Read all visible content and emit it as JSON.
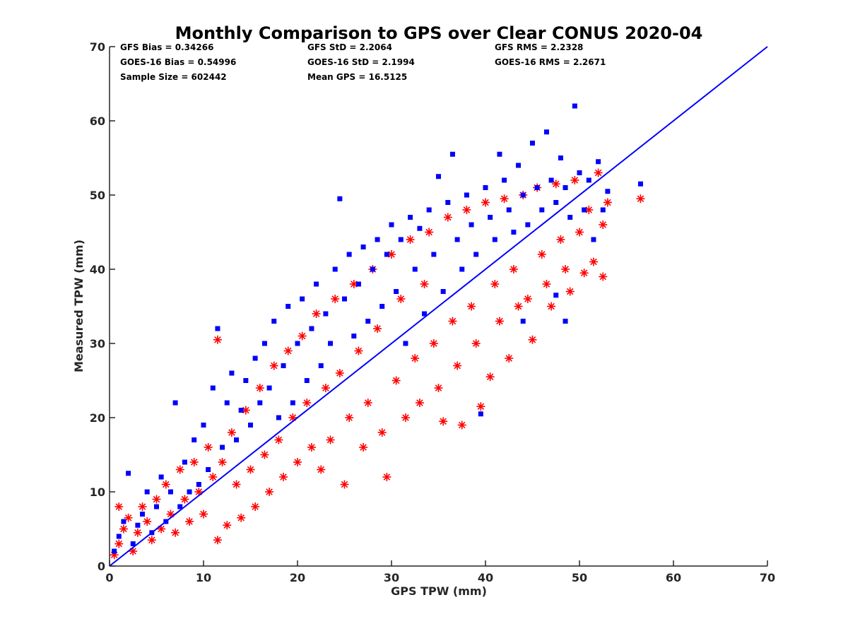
{
  "chart_data": {
    "type": "scatter",
    "title": "Monthly Comparison to GPS over Clear CONUS 2020-04",
    "xlabel": "GPS TPW (mm)",
    "ylabel": "Measured TPW (mm)",
    "xlim": [
      0,
      70
    ],
    "ylim": [
      0,
      70
    ],
    "x_ticks": [
      "0",
      "10",
      "20",
      "30",
      "40",
      "50",
      "60",
      "70"
    ],
    "y_ticks": [
      "0",
      "10",
      "20",
      "30",
      "40",
      "50",
      "60",
      "70"
    ],
    "grid": false,
    "stats": [
      "GFS Bias = 0.34266",
      "GFS StD = 2.2064",
      "GFS RMS = 2.2328",
      "GOES-16 Bias = 0.54996",
      "GOES-16 StD = 2.1994",
      "GOES-16 RMS = 2.2671",
      "Sample Size = 602442",
      "Mean GPS = 16.5125"
    ],
    "reference_line": {
      "x": [
        0,
        70
      ],
      "y": [
        0,
        70
      ],
      "color": "#0000ff"
    },
    "series": [
      {
        "marker": "asterisk",
        "color": "#ff0000",
        "points": [
          [
            0.5,
            1.5
          ],
          [
            1,
            3
          ],
          [
            1.5,
            5
          ],
          [
            2,
            6.5
          ],
          [
            2.5,
            2
          ],
          [
            3,
            4.5
          ],
          [
            3.5,
            8
          ],
          [
            4,
            6
          ],
          [
            4.5,
            3.5
          ],
          [
            5,
            9
          ],
          [
            5.5,
            5
          ],
          [
            6,
            11
          ],
          [
            6.5,
            7
          ],
          [
            7,
            4.5
          ],
          [
            7.5,
            13
          ],
          [
            8,
            9
          ],
          [
            8.5,
            6
          ],
          [
            9,
            14
          ],
          [
            9.5,
            10
          ],
          [
            10,
            7
          ],
          [
            10.5,
            16
          ],
          [
            11,
            12
          ],
          [
            11.5,
            3.5
          ],
          [
            11.5,
            30.5
          ],
          [
            12,
            14
          ],
          [
            12.5,
            5.5
          ],
          [
            13,
            18
          ],
          [
            13.5,
            11
          ],
          [
            14,
            6.5
          ],
          [
            14.5,
            21
          ],
          [
            15,
            13
          ],
          [
            15.5,
            8
          ],
          [
            16,
            24
          ],
          [
            16.5,
            15
          ],
          [
            17,
            10
          ],
          [
            17.5,
            27
          ],
          [
            18,
            17
          ],
          [
            18.5,
            12
          ],
          [
            19,
            29
          ],
          [
            19.5,
            20
          ],
          [
            20,
            14
          ],
          [
            20.5,
            31
          ],
          [
            21,
            22
          ],
          [
            21.5,
            16
          ],
          [
            22,
            34
          ],
          [
            22.5,
            13
          ],
          [
            23,
            24
          ],
          [
            23.5,
            17
          ],
          [
            24,
            36
          ],
          [
            24.5,
            26
          ],
          [
            25,
            11
          ],
          [
            25.5,
            20
          ],
          [
            26,
            38
          ],
          [
            26.5,
            29
          ],
          [
            27,
            16
          ],
          [
            27.5,
            22
          ],
          [
            28,
            40
          ],
          [
            28.5,
            32
          ],
          [
            29,
            18
          ],
          [
            29.5,
            12
          ],
          [
            30,
            42
          ],
          [
            30.5,
            25
          ],
          [
            31,
            36
          ],
          [
            31.5,
            20
          ],
          [
            32,
            44
          ],
          [
            32.5,
            28
          ],
          [
            33,
            22
          ],
          [
            33.5,
            38
          ],
          [
            34,
            45
          ],
          [
            34.5,
            30
          ],
          [
            35,
            24
          ],
          [
            35.5,
            19.5
          ],
          [
            36,
            47
          ],
          [
            36.5,
            33
          ],
          [
            37,
            27
          ],
          [
            37.5,
            19
          ],
          [
            38,
            48
          ],
          [
            38.5,
            35
          ],
          [
            39,
            30
          ],
          [
            39.5,
            21.5
          ],
          [
            40,
            49
          ],
          [
            40.5,
            25.5
          ],
          [
            41,
            38
          ],
          [
            41.5,
            33
          ],
          [
            42,
            49.5
          ],
          [
            42.5,
            28
          ],
          [
            43,
            40
          ],
          [
            43.5,
            35
          ],
          [
            44,
            50
          ],
          [
            44.5,
            36
          ],
          [
            45,
            30.5
          ],
          [
            45.5,
            51
          ],
          [
            46,
            42
          ],
          [
            46.5,
            38
          ],
          [
            47,
            35
          ],
          [
            47.5,
            51.5
          ],
          [
            48,
            44
          ],
          [
            48.5,
            40
          ],
          [
            49,
            37
          ],
          [
            49.5,
            52
          ],
          [
            50,
            45
          ],
          [
            50.5,
            39.5
          ],
          [
            51,
            48
          ],
          [
            51.5,
            41
          ],
          [
            52,
            53
          ],
          [
            52.5,
            46
          ],
          [
            53,
            49
          ],
          [
            52.5,
            39
          ],
          [
            56.5,
            49.5
          ],
          [
            1,
            8
          ]
        ]
      },
      {
        "marker": "square",
        "color": "#0000ff",
        "points": [
          [
            0.5,
            2
          ],
          [
            1,
            4
          ],
          [
            1.5,
            6
          ],
          [
            2,
            12.5
          ],
          [
            2.5,
            3
          ],
          [
            3,
            5.5
          ],
          [
            3.5,
            7
          ],
          [
            4,
            10
          ],
          [
            4.5,
            4.5
          ],
          [
            5,
            8
          ],
          [
            5.5,
            12
          ],
          [
            6,
            6
          ],
          [
            6.5,
            10
          ],
          [
            7,
            22
          ],
          [
            7.5,
            8
          ],
          [
            8,
            14
          ],
          [
            8.5,
            10
          ],
          [
            9,
            17
          ],
          [
            9.5,
            11
          ],
          [
            10,
            19
          ],
          [
            10.5,
            13
          ],
          [
            11,
            24
          ],
          [
            11.5,
            32
          ],
          [
            12,
            16
          ],
          [
            12.5,
            22
          ],
          [
            13,
            26
          ],
          [
            13.5,
            17
          ],
          [
            14,
            21
          ],
          [
            14.5,
            25
          ],
          [
            15,
            19
          ],
          [
            15.5,
            28
          ],
          [
            16,
            22
          ],
          [
            16.5,
            30
          ],
          [
            17,
            24
          ],
          [
            17.5,
            33
          ],
          [
            18,
            20
          ],
          [
            18.5,
            27
          ],
          [
            19,
            35
          ],
          [
            19.5,
            22
          ],
          [
            20,
            30
          ],
          [
            20.5,
            36
          ],
          [
            21,
            25
          ],
          [
            21.5,
            32
          ],
          [
            22,
            38
          ],
          [
            22.5,
            27
          ],
          [
            23,
            34
          ],
          [
            23.5,
            30
          ],
          [
            24,
            40
          ],
          [
            24.5,
            49.5
          ],
          [
            25,
            36
          ],
          [
            25.5,
            42
          ],
          [
            26,
            31
          ],
          [
            26.5,
            38
          ],
          [
            27,
            43
          ],
          [
            27.5,
            33
          ],
          [
            28,
            40
          ],
          [
            28.5,
            44
          ],
          [
            29,
            35
          ],
          [
            29.5,
            42
          ],
          [
            30,
            46
          ],
          [
            30.5,
            37
          ],
          [
            31,
            44
          ],
          [
            31.5,
            30
          ],
          [
            32,
            47
          ],
          [
            32.5,
            40
          ],
          [
            33,
            45.5
          ],
          [
            33.5,
            34
          ],
          [
            34,
            48
          ],
          [
            34.5,
            42
          ],
          [
            35,
            52.5
          ],
          [
            35.5,
            37
          ],
          [
            36,
            49
          ],
          [
            36.5,
            55.5
          ],
          [
            37,
            44
          ],
          [
            37.5,
            40
          ],
          [
            38,
            50
          ],
          [
            38.5,
            46
          ],
          [
            39,
            42
          ],
          [
            39.5,
            20.5
          ],
          [
            40,
            51
          ],
          [
            40.5,
            47
          ],
          [
            41,
            44
          ],
          [
            41.5,
            55.5
          ],
          [
            42,
            52
          ],
          [
            42.5,
            48
          ],
          [
            43,
            45
          ],
          [
            43.5,
            54
          ],
          [
            44,
            50
          ],
          [
            44.5,
            46
          ],
          [
            45,
            57
          ],
          [
            45.5,
            51
          ],
          [
            46,
            48
          ],
          [
            46.5,
            58.5
          ],
          [
            47,
            52
          ],
          [
            47.5,
            49
          ],
          [
            48,
            55
          ],
          [
            48.5,
            51
          ],
          [
            49,
            47
          ],
          [
            49.5,
            62
          ],
          [
            50,
            53
          ],
          [
            50.5,
            48
          ],
          [
            51,
            52
          ],
          [
            51.5,
            44
          ],
          [
            52,
            54.5
          ],
          [
            52.5,
            48
          ],
          [
            53,
            50.5
          ],
          [
            56.5,
            51.5
          ],
          [
            48.5,
            33
          ],
          [
            47.5,
            36.5
          ],
          [
            44,
            33
          ]
        ]
      }
    ]
  }
}
